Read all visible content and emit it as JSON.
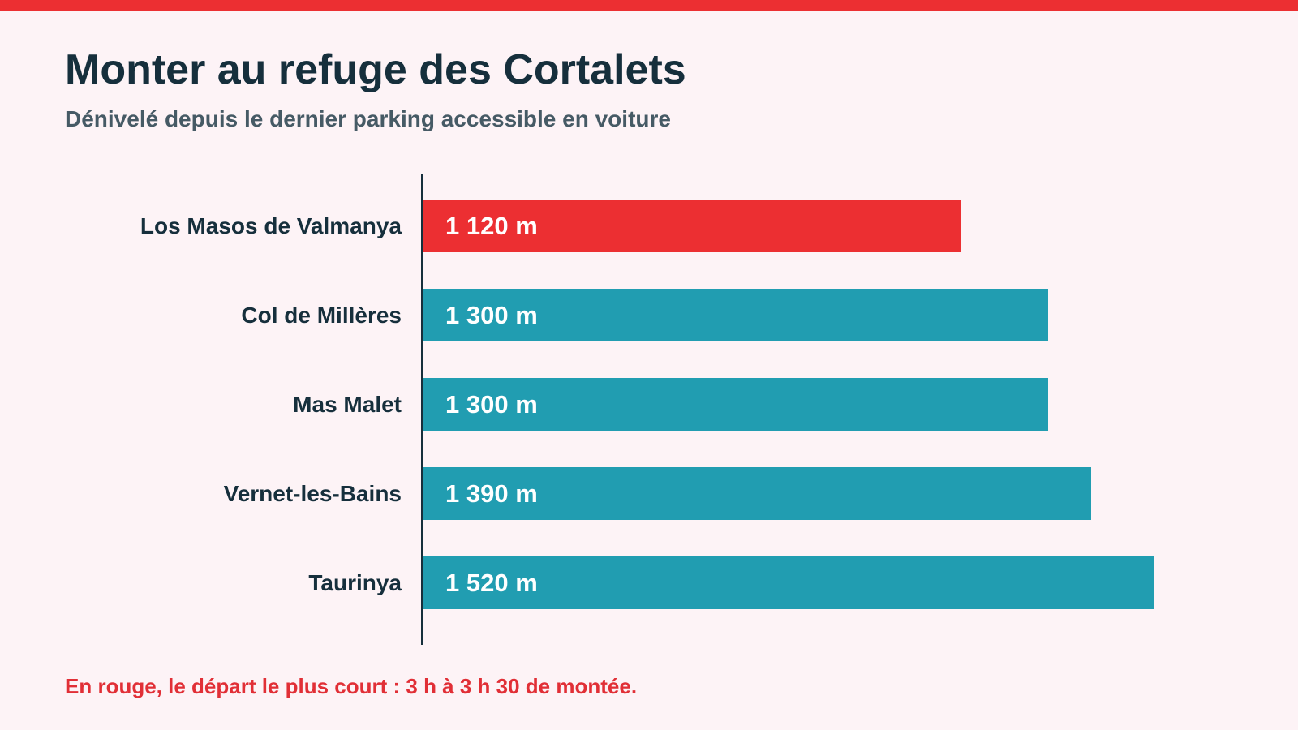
{
  "title": "Monter au refuge des Cortalets",
  "subtitle": "Dénivelé depuis le dernier parking accessible en voiture",
  "footnote": "En rouge, le départ le plus court : 3 h à 3 h 30 de montée.",
  "colors": {
    "highlight": "#ec2f32",
    "default": "#219db1",
    "axis": "#162f3c",
    "background": "#fdf3f6"
  },
  "chart_data": {
    "type": "bar",
    "orientation": "horizontal",
    "categories": [
      "Los Masos de Valmanya",
      "Col de Millères",
      "Mas Malet",
      "Vernet-les-Bains",
      "Taurinya"
    ],
    "values": [
      1120,
      1300,
      1300,
      1390,
      1520
    ],
    "value_labels": [
      "1 120 m",
      "1 300 m",
      "1 300 m",
      "1 390 m",
      "1 520 m"
    ],
    "highlighted": [
      true,
      false,
      false,
      false,
      false
    ],
    "xlim": [
      0,
      1520
    ],
    "grid": false,
    "legend": "none"
  }
}
